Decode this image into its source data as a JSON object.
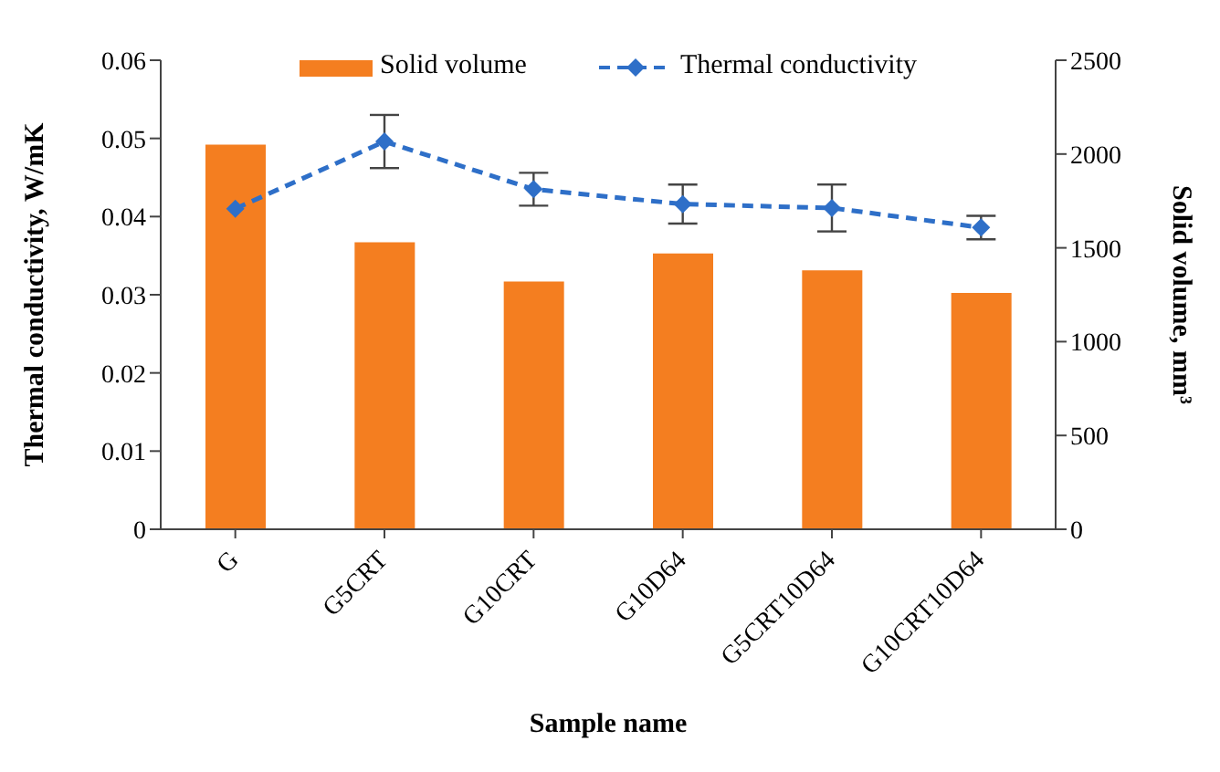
{
  "chart_data": {
    "type": "bar",
    "xlabel": "Sample name",
    "ylabel": "Thermal conductivity, W/mK",
    "y2label": "Solid volume, mm³",
    "categories": [
      "G",
      "G5CRT",
      "G10CRT",
      "G10D64",
      "G5CRT10D64",
      "G10CRT10D64"
    ],
    "series": [
      {
        "name": "Solid volume",
        "axis": "y2",
        "color": "#f47e20",
        "values": [
          2050,
          1530,
          1320,
          1470,
          1380,
          1260
        ]
      },
      {
        "name": "Thermal conductivity",
        "type": "line",
        "axis": "y",
        "color": "#2e6fc8",
        "marker": "diamond",
        "line_style": "dashed",
        "values": [
          0.041,
          0.0496,
          0.0435,
          0.0416,
          0.0411,
          0.0386
        ],
        "errors": [
          null,
          0.0034,
          0.0021,
          0.0025,
          0.003,
          0.0015
        ]
      }
    ],
    "ylim": [
      0,
      0.06
    ],
    "yticks": [
      0,
      0.01,
      0.02,
      0.03,
      0.04,
      0.05,
      0.06
    ],
    "y2lim": [
      0,
      2500
    ],
    "y2ticks": [
      0,
      500,
      1000,
      1500,
      2000,
      2500
    ],
    "grid": false,
    "legend": "top"
  }
}
